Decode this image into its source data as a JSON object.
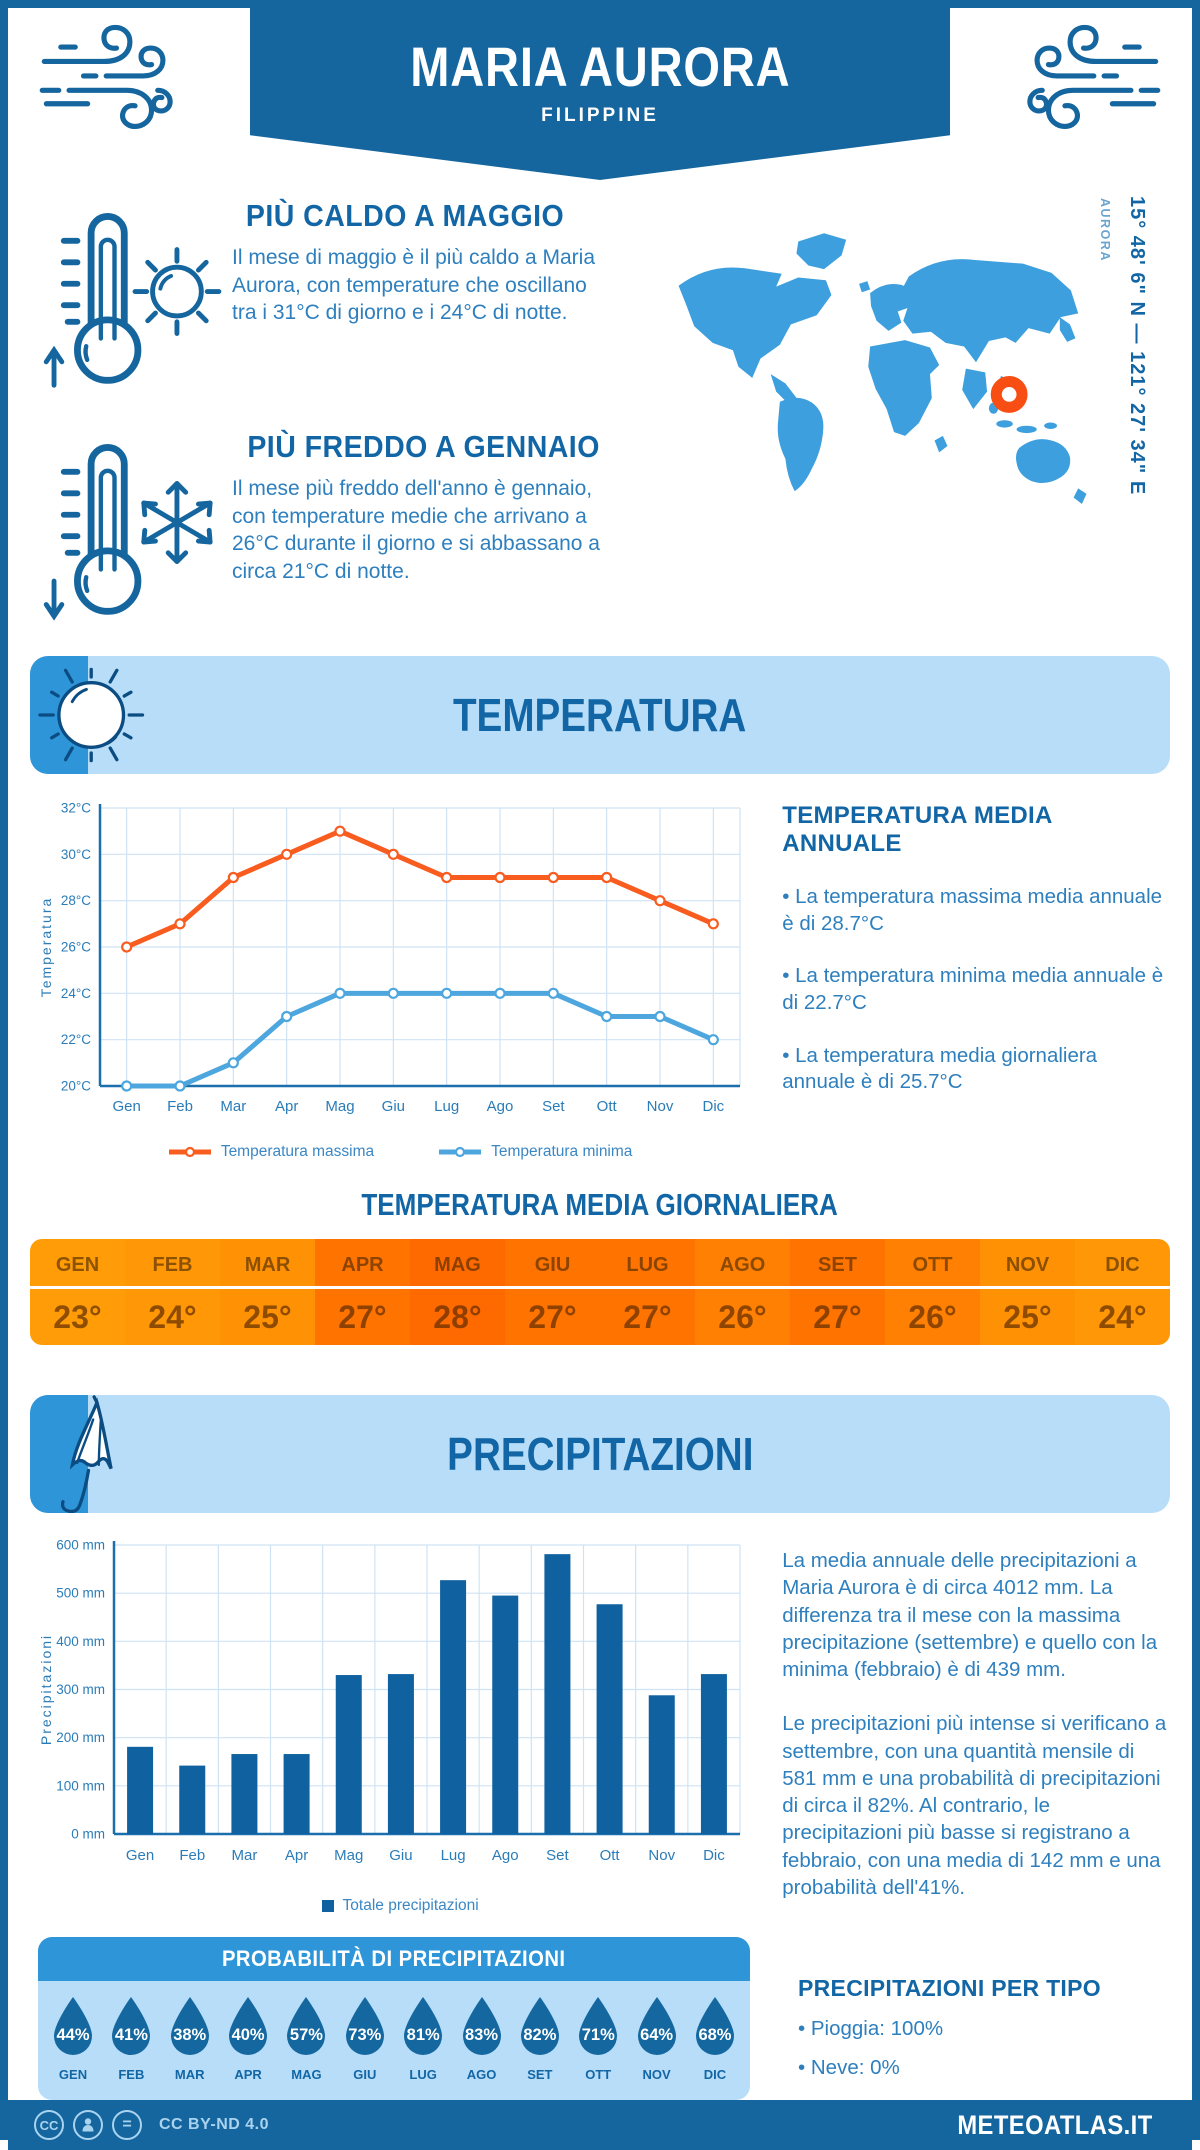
{
  "header": {
    "title": "MARIA AURORA",
    "subtitle": "FILIPPINE"
  },
  "location": {
    "coordinates": "15° 48' 6\" N — 121° 27' 34\" E",
    "label": "AURORA"
  },
  "highlights": [
    {
      "icon": "thermometer-up-sun",
      "heading": "PIÙ CALDO A MAGGIO",
      "text": "Il mese di maggio è il più caldo a Maria Aurora, con temperature che oscillano tra i 31°C di giorno e i 24°C di notte."
    },
    {
      "icon": "thermometer-down-snowflake",
      "heading": "PIÙ FREDDO A GENNAIO",
      "text": "Il mese più freddo dell'anno è gennaio, con temperature medie che arrivano a 26°C durante il giorno e si abbassano a circa 21°C di notte."
    }
  ],
  "temperature": {
    "section_title": "TEMPERATURA",
    "annual_heading": "TEMPERATURA MEDIA ANNUALE",
    "annual_bullets": [
      "• La temperatura massima media annuale è di 28.7°C",
      "• La temperatura minima media annuale è di 22.7°C",
      "• La temperatura media giornaliera annuale è di 25.7°C"
    ],
    "daily_heading": "TEMPERATURA MEDIA GIORNALIERA",
    "daily_months": [
      "GEN",
      "FEB",
      "MAR",
      "APR",
      "MAG",
      "GIU",
      "LUG",
      "AGO",
      "SET",
      "OTT",
      "NOV",
      "DIC"
    ],
    "daily_values": [
      "23°",
      "24°",
      "25°",
      "27°",
      "28°",
      "27°",
      "27°",
      "26°",
      "27°",
      "26°",
      "25°",
      "24°"
    ],
    "daily_cell_colors": [
      "#ff9c08",
      "#ff9706",
      "#ff9105",
      "#ff7301",
      "#ff6a00",
      "#ff7301",
      "#ff7301",
      "#ff8003",
      "#ff7301",
      "#ff8003",
      "#ff9105",
      "#ff9706"
    ]
  },
  "precipitation": {
    "section_title": "PRECIPITAZIONI",
    "paragraphs": [
      "La media annuale delle precipitazioni a Maria Aurora è di circa 4012 mm. La differenza tra il mese con la massima precipitazione (settembre) e quello con la minima (febbraio) è di 439 mm.",
      "Le precipitazioni più intense si verificano a settembre, con una quantità mensile di 581 mm e una probabilità di precipitazioni di circa il 82%. Al contrario, le precipitazioni più basse si registrano a febbraio, con una media di 142 mm e una probabilità dell'41%."
    ],
    "probability_heading": "PROBABILITÀ DI PRECIPITAZIONI",
    "probability_months": [
      "GEN",
      "FEB",
      "MAR",
      "APR",
      "MAG",
      "GIU",
      "LUG",
      "AGO",
      "SET",
      "OTT",
      "NOV",
      "DIC"
    ],
    "probability_values": [
      "44%",
      "41%",
      "38%",
      "40%",
      "57%",
      "73%",
      "81%",
      "83%",
      "82%",
      "71%",
      "64%",
      "68%"
    ],
    "types_heading": "PRECIPITAZIONI PER TIPO",
    "types_bullets": [
      "• Pioggia: 100%",
      "• Neve: 0%"
    ]
  },
  "chart_data": [
    {
      "type": "line",
      "title": "Temperatura",
      "x": [
        "Gen",
        "Feb",
        "Mar",
        "Apr",
        "Mag",
        "Giu",
        "Lug",
        "Ago",
        "Set",
        "Ott",
        "Nov",
        "Dic"
      ],
      "ylabel": "Temperatura",
      "ylim": [
        20,
        32
      ],
      "ytick_step": 2,
      "ytick_suffix": "°C",
      "ytick_labels": [
        "20°C",
        "22°C",
        "24°C",
        "26°C",
        "28°C",
        "30°C",
        "32°C"
      ],
      "grid": true,
      "legend_position": "bottom",
      "series": [
        {
          "name": "Temperatura massima",
          "color": "#f85c1f",
          "values": [
            26,
            27,
            29,
            30,
            31,
            30,
            29,
            29,
            29,
            29,
            28,
            27
          ]
        },
        {
          "name": "Temperatura minima",
          "color": "#4da6de",
          "values": [
            20,
            20,
            21,
            23,
            24,
            24,
            24,
            24,
            24,
            23,
            23,
            22
          ]
        }
      ]
    },
    {
      "type": "bar",
      "title": "Precipitazioni",
      "x": [
        "Gen",
        "Feb",
        "Mar",
        "Apr",
        "Mag",
        "Giu",
        "Lug",
        "Ago",
        "Set",
        "Ott",
        "Nov",
        "Dic"
      ],
      "ylabel": "Precipitazioni",
      "ylim": [
        0,
        600
      ],
      "ytick_step": 100,
      "ytick_suffix": " mm",
      "ytick_labels": [
        "0 mm",
        "100 mm",
        "200 mm",
        "300 mm",
        "400 mm",
        "500 mm",
        "600 mm"
      ],
      "grid": true,
      "legend_position": "bottom",
      "series": [
        {
          "name": "Totale precipitazioni",
          "color": "#0f619f",
          "values": [
            181,
            142,
            166,
            166,
            330,
            332,
            527,
            495,
            581,
            477,
            288,
            332
          ]
        }
      ]
    }
  ],
  "footer": {
    "license": "CC BY-ND 4.0",
    "brand": "METEOATLAS.IT"
  },
  "colors": {
    "frame": "#15669f",
    "heading": "#1266a5",
    "body_text": "#2e7fbe",
    "accent": "#2e96d8",
    "panel": "#b7ddf8",
    "map": "#3d9fde",
    "marker": "#f94e13",
    "bar": "#0f619f",
    "temp_max_line": "#f85c1f",
    "temp_min_line": "#4da6de"
  }
}
